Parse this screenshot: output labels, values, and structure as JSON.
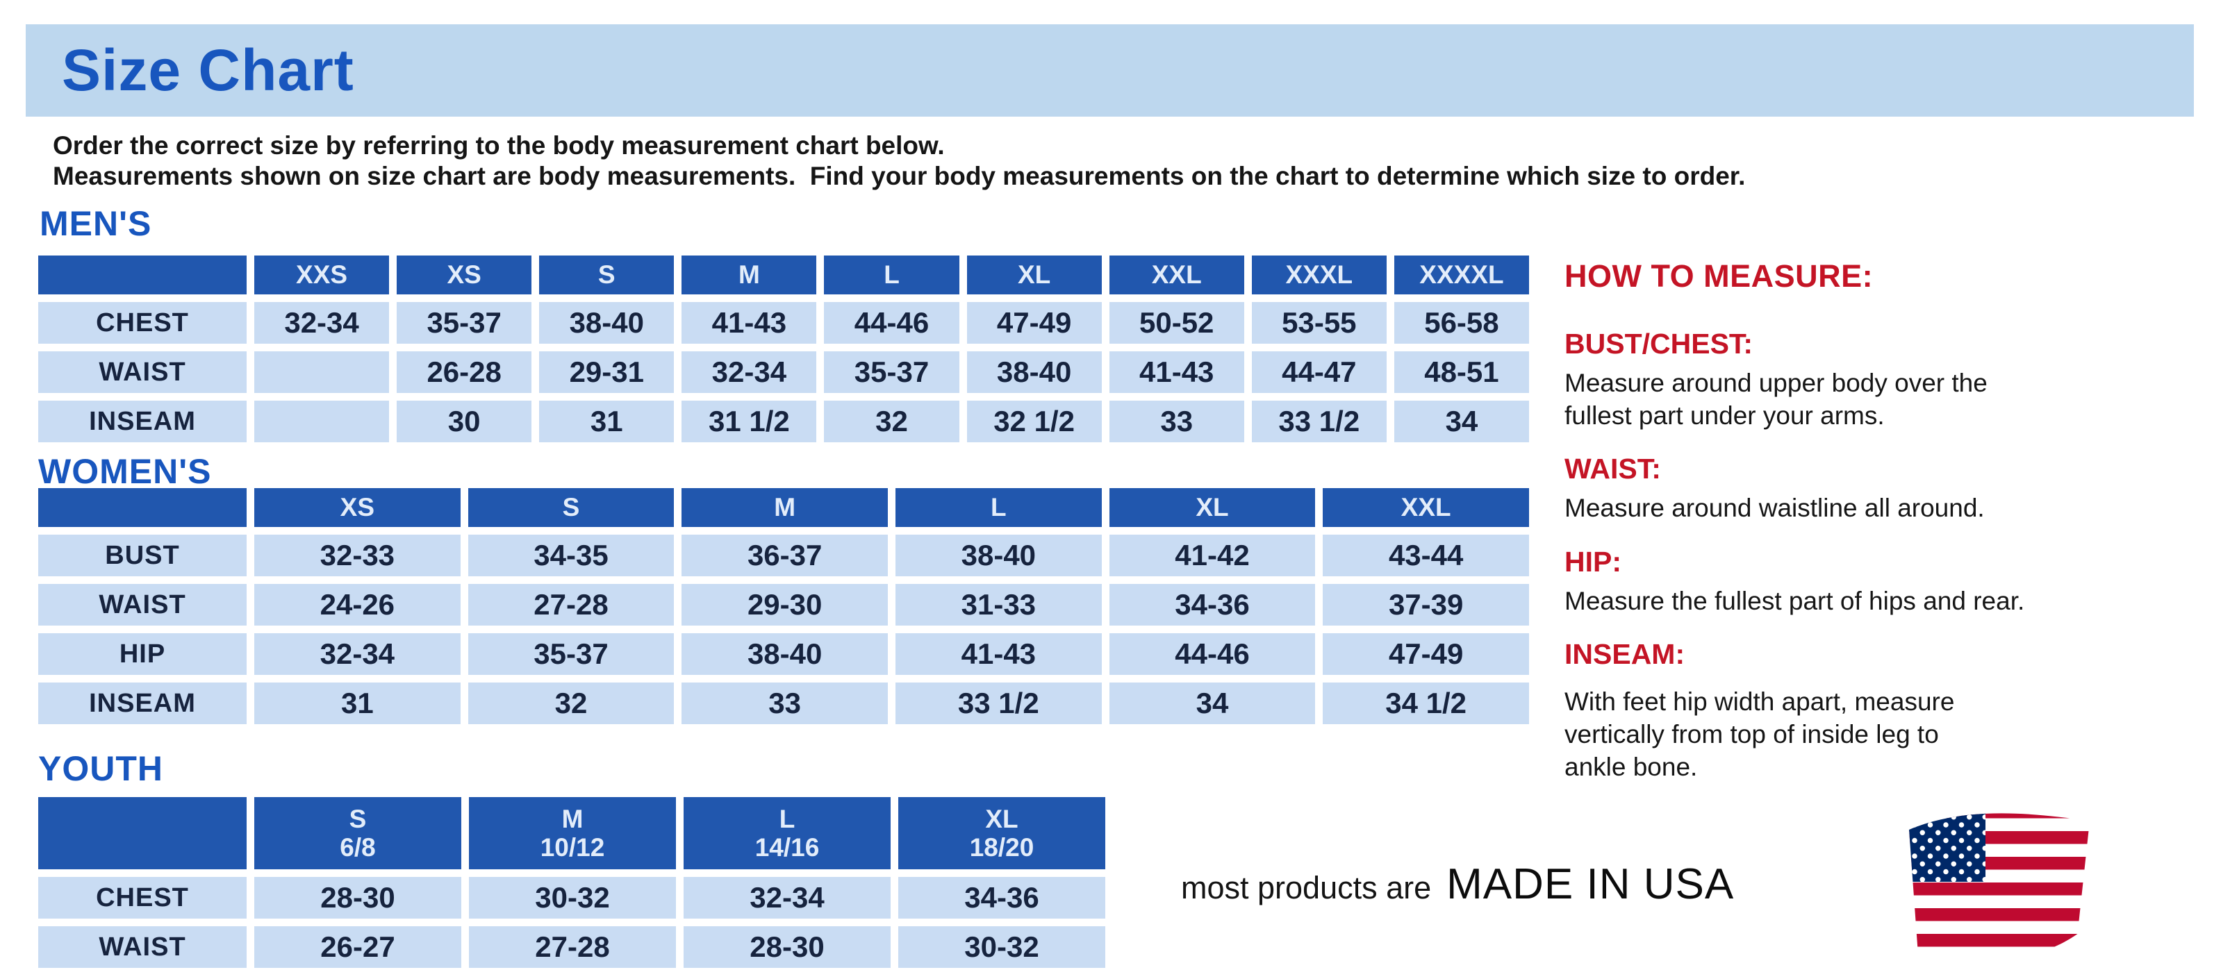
{
  "title": "Size Chart",
  "intro": {
    "line1": "Order the correct size by referring to the body measurement chart below.",
    "line2": "Measurements shown on size chart are body measurements.  Find your body measurements on the chart to determine which size to order."
  },
  "colors": {
    "title_blue": "#1856BE",
    "title_band_bg": "#BDD7EE",
    "table_header_bg": "#2157AE",
    "table_cell_bg": "#C9DCF3",
    "table_text": "#16233E",
    "measure_red": "#C41425",
    "flag_red": "#BF0A30",
    "flag_blue": "#002868"
  },
  "tables": {
    "mens": {
      "heading": "MEN'S",
      "columns": [
        "XXS",
        "XS",
        "S",
        "M",
        "L",
        "XL",
        "XXL",
        "XXXL",
        "XXXXL"
      ],
      "rows": [
        {
          "label": "CHEST",
          "values": [
            "32-34",
            "35-37",
            "38-40",
            "41-43",
            "44-46",
            "47-49",
            "50-52",
            "53-55",
            "56-58"
          ]
        },
        {
          "label": "WAIST",
          "values": [
            "",
            "26-28",
            "29-31",
            "32-34",
            "35-37",
            "38-40",
            "41-43",
            "44-47",
            "48-51"
          ]
        },
        {
          "label": "INSEAM",
          "values": [
            "",
            "30",
            "31",
            "31 1/2",
            "32",
            "32 1/2",
            "33",
            "33 1/2",
            "34"
          ]
        }
      ]
    },
    "womens": {
      "heading": "WOMEN'S",
      "columns": [
        "XS",
        "S",
        "M",
        "L",
        "XL",
        "XXL"
      ],
      "rows": [
        {
          "label": "BUST",
          "values": [
            "32-33",
            "34-35",
            "36-37",
            "38-40",
            "41-42",
            "43-44"
          ]
        },
        {
          "label": "WAIST",
          "values": [
            "24-26",
            "27-28",
            "29-30",
            "31-33",
            "34-36",
            "37-39"
          ]
        },
        {
          "label": "HIP",
          "values": [
            "32-34",
            "35-37",
            "38-40",
            "41-43",
            "44-46",
            "47-49"
          ]
        },
        {
          "label": "INSEAM",
          "values": [
            "31",
            "32",
            "33",
            "33 1/2",
            "34",
            "34 1/2"
          ]
        }
      ]
    },
    "youth": {
      "heading": "YOUTH",
      "columns": [
        {
          "size": "S",
          "range": "6/8"
        },
        {
          "size": "M",
          "range": "10/12"
        },
        {
          "size": "L",
          "range": "14/16"
        },
        {
          "size": "XL",
          "range": "18/20"
        }
      ],
      "rows": [
        {
          "label": "CHEST",
          "values": [
            "28-30",
            "30-32",
            "32-34",
            "34-36"
          ]
        },
        {
          "label": "WAIST",
          "values": [
            "26-27",
            "27-28",
            "28-30",
            "30-32"
          ]
        }
      ]
    }
  },
  "how_to_measure": {
    "heading": "HOW TO MEASURE:",
    "items": [
      {
        "label": "BUST/CHEST:",
        "text": "Measure around upper body over the\nfullest part under your arms."
      },
      {
        "label": "WAIST:",
        "text": "Measure around waistline all around."
      },
      {
        "label": "HIP:",
        "text": "Measure the fullest part of hips and rear."
      },
      {
        "label": "INSEAM:",
        "text": "With feet hip width apart, measure\nvertically from top of inside leg to\nankle bone."
      }
    ]
  },
  "footer": {
    "prefix": "most products are",
    "emphasis": "MADE IN USA",
    "flag_icon": "us-flag-icon"
  }
}
